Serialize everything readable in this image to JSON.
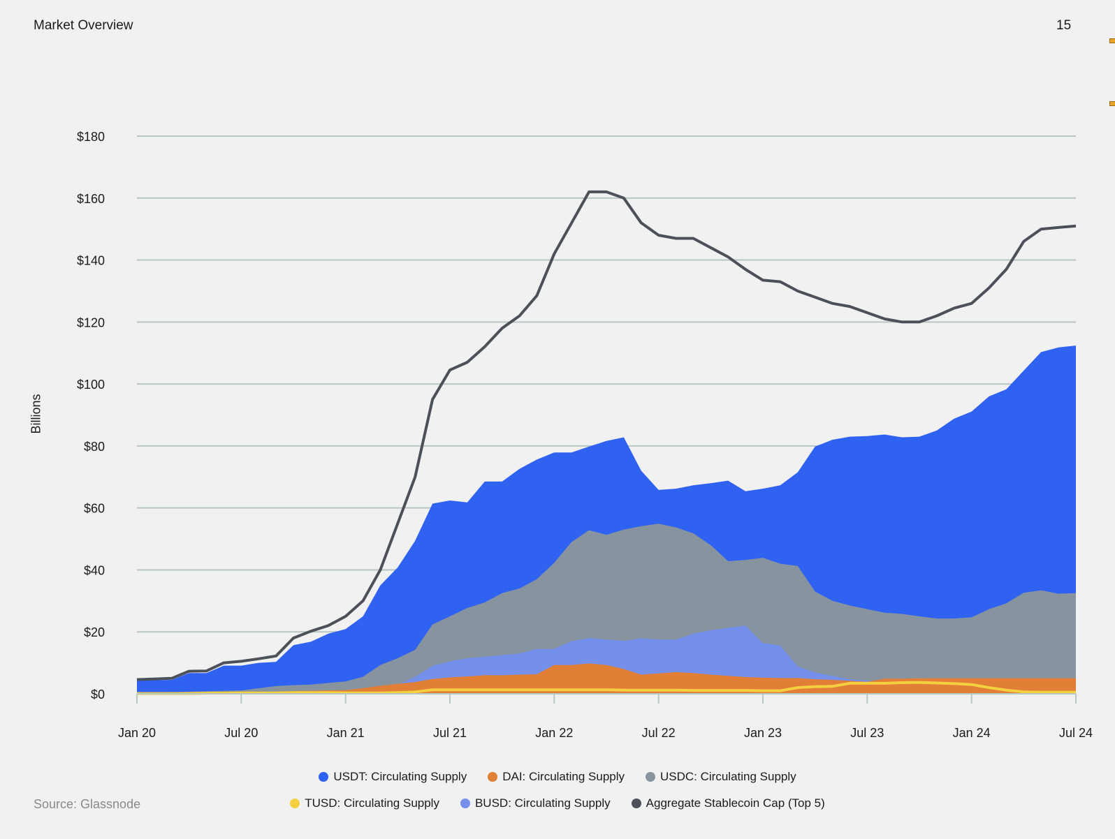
{
  "header": {
    "title": "Market Overview",
    "page_number": "15"
  },
  "source": "Source: Glassnode",
  "chart_data": {
    "type": "area",
    "title": "",
    "xlabel": "",
    "ylabel": "Billions",
    "ylim": [
      0,
      180
    ],
    "y_ticks": [
      0,
      20,
      40,
      60,
      80,
      100,
      120,
      140,
      160,
      180
    ],
    "y_tick_labels": [
      "$0",
      "$20",
      "$40",
      "$60",
      "$80",
      "$100",
      "$120",
      "$140",
      "$160",
      "$180"
    ],
    "x_tick_months": [
      0,
      6,
      12,
      18,
      24,
      30,
      36,
      42,
      48,
      54
    ],
    "x_tick_labels": [
      "Jan 20",
      "Jul 20",
      "Jan 21",
      "Jul 21",
      "Jan 22",
      "Jul 22",
      "Jan 23",
      "Jul 23",
      "Jan 24",
      "Jul 24"
    ],
    "x_unit": "months since Jan 2020",
    "grid": true,
    "legend_position": "bottom",
    "series": [
      {
        "name": "USDT: Circulating Supply",
        "color": "#3062f2",
        "kind": "area",
        "values": [
          4.4,
          4.4,
          4.5,
          6.7,
          6.7,
          9.1,
          9.1,
          10,
          10.3,
          15.7,
          16.8,
          19.4,
          20.9,
          25,
          35,
          40.8,
          49.4,
          61.4,
          62.4,
          61.8,
          68.5,
          68.5,
          72.6,
          75.6,
          77.9,
          77.9,
          79.8,
          81.6,
          82.8,
          72,
          65.8,
          66.2,
          67.3,
          68,
          68.8,
          65.4,
          66.2,
          67.3,
          71.5,
          79.8,
          82,
          83,
          83.2,
          83.7,
          82.8,
          83,
          85,
          88.8,
          91.1,
          96,
          98.3,
          104.3,
          110.3,
          111.8,
          112.4
        ]
      },
      {
        "name": "USDC: Circulating Supply",
        "color": "#87949f",
        "kind": "area",
        "values": [
          0.05,
          0.4,
          0.5,
          0.7,
          0.8,
          1,
          1.1,
          1.8,
          2.5,
          2.8,
          3,
          3.5,
          4,
          5.5,
          9.3,
          11.5,
          14.2,
          22.4,
          25,
          27.7,
          29.5,
          32.5,
          34,
          37,
          42.3,
          49,
          52.8,
          51.3,
          53,
          54.1,
          54.9,
          53.7,
          51.8,
          48,
          42.8,
          43.2,
          43.9,
          42,
          41.3,
          33,
          30,
          28.5,
          27.3,
          26.2,
          25.8,
          25,
          24.3,
          24.3,
          24.7,
          27.3,
          29.2,
          32.6,
          33.4,
          32.3,
          32.5
        ]
      },
      {
        "name": "BUSD: Circulating Supply",
        "color": "#7490ea",
        "kind": "area",
        "values": [
          0.2,
          0.2,
          0.2,
          0.2,
          0.2,
          0.2,
          0.2,
          0.3,
          0.3,
          0.4,
          0.5,
          0.6,
          0.8,
          1.5,
          2.2,
          3,
          5.5,
          9,
          10.5,
          11.5,
          12,
          12.5,
          13,
          14.5,
          14.5,
          17,
          18,
          17.5,
          17.1,
          17.9,
          17.5,
          17.5,
          19.4,
          20.5,
          21.3,
          22,
          16.4,
          15.6,
          8.8,
          6.9,
          5.8,
          4.7,
          4.3,
          3.9,
          3.3,
          2.8,
          2.3,
          1.8,
          1.5,
          1.2,
          1,
          0.8,
          0.6,
          0.5,
          0.4
        ]
      },
      {
        "name": "DAI: Circulating Supply",
        "color": "#e07f35",
        "kind": "area",
        "values": [
          0.1,
          0.1,
          0.1,
          0.1,
          0.1,
          0.1,
          0.2,
          0.4,
          0.7,
          0.9,
          1,
          1.1,
          1.2,
          1.8,
          2.6,
          3.2,
          3.8,
          4.8,
          5.3,
          5.6,
          6,
          6,
          6.2,
          6.3,
          9.3,
          9.3,
          9.8,
          9.3,
          8,
          6.2,
          6.6,
          7,
          6.7,
          6.2,
          5.8,
          5.4,
          5.2,
          5.1,
          5.1,
          4.7,
          4.5,
          4.2,
          3.9,
          4.9,
          4.9,
          5,
          5,
          5,
          5,
          5,
          5,
          5,
          5,
          5,
          5
        ]
      },
      {
        "name": "TUSD: Circulating Supply",
        "color": "#f4cf40",
        "kind": "line",
        "values": [
          0.1,
          0.1,
          0.1,
          0.1,
          0.2,
          0.2,
          0.3,
          0.3,
          0.3,
          0.4,
          0.4,
          0.4,
          0.3,
          0.3,
          0.3,
          0.4,
          0.6,
          1.3,
          1.3,
          1.3,
          1.3,
          1.3,
          1.3,
          1.3,
          1.3,
          1.3,
          1.3,
          1.3,
          1.2,
          1.2,
          1.2,
          1.2,
          1.1,
          1.1,
          1.1,
          1.1,
          1,
          1,
          2,
          2.3,
          2.4,
          3.4,
          3.4,
          3.4,
          3.6,
          3.7,
          3.5,
          3.3,
          3,
          2,
          1.2,
          0.6,
          0.5,
          0.5,
          0.5
        ]
      },
      {
        "name": "Aggregate Stablecoin Cap (Top 5)",
        "color": "#4c5059",
        "kind": "line",
        "values": [
          4.6,
          4.8,
          5,
          7.3,
          7.4,
          10,
          10.5,
          11.3,
          12.2,
          18,
          20.2,
          22,
          25,
          30,
          40,
          55,
          70,
          95,
          104.5,
          107,
          112,
          118,
          122,
          128.5,
          142,
          152,
          162,
          162,
          160,
          152,
          148,
          147,
          147,
          144,
          141,
          137,
          133.5,
          133,
          130,
          128,
          126,
          125,
          123,
          121,
          120,
          120,
          122,
          124.5,
          126,
          131,
          137,
          146,
          150,
          150.5,
          151
        ]
      }
    ],
    "legend_rows": [
      [
        0,
        3,
        1
      ],
      [
        4,
        2,
        5
      ]
    ]
  }
}
